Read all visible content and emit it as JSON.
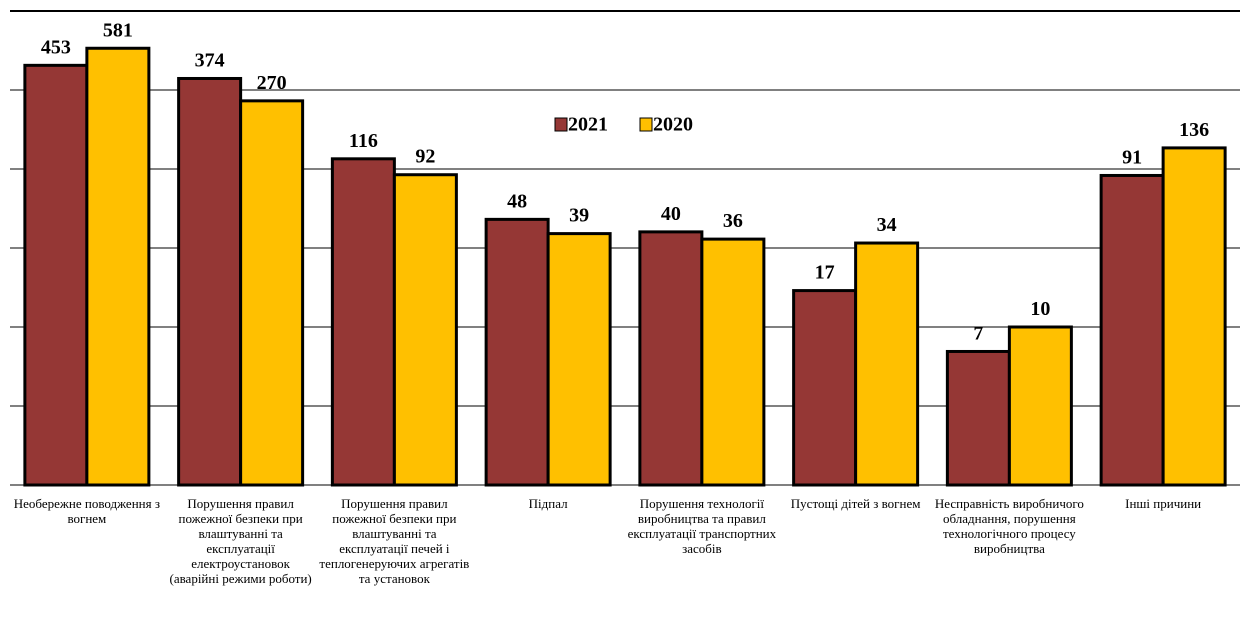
{
  "chart_data": {
    "type": "bar",
    "categories": [
      "Необережне поводження з вогнем",
      "Порушення правил пожежної безпеки при влаштуванні та експлуатації електроустановок (аварійні режими роботи)",
      "Порушення правил пожежної безпеки при влаштуванні та експлуатації печей і теплогенеруючих агрегатів та установок",
      "Підпал",
      "Порушення технології виробництва та правил експлуатації транспортних засобів",
      "Пустощі дітей з вогнем",
      "Несправність виробничого обладнання, порушення технологічного процесу виробництва",
      "Інші причини"
    ],
    "series": [
      {
        "name": "2021",
        "color": "#953735",
        "values": [
          453,
          374,
          116,
          48,
          40,
          17,
          7,
          91
        ]
      },
      {
        "name": "2020",
        "color": "#ffc000",
        "values": [
          581,
          270,
          92,
          39,
          36,
          34,
          10,
          136
        ]
      }
    ],
    "ylim": [
      1,
      1000
    ],
    "log_scale": true,
    "grid": true
  }
}
